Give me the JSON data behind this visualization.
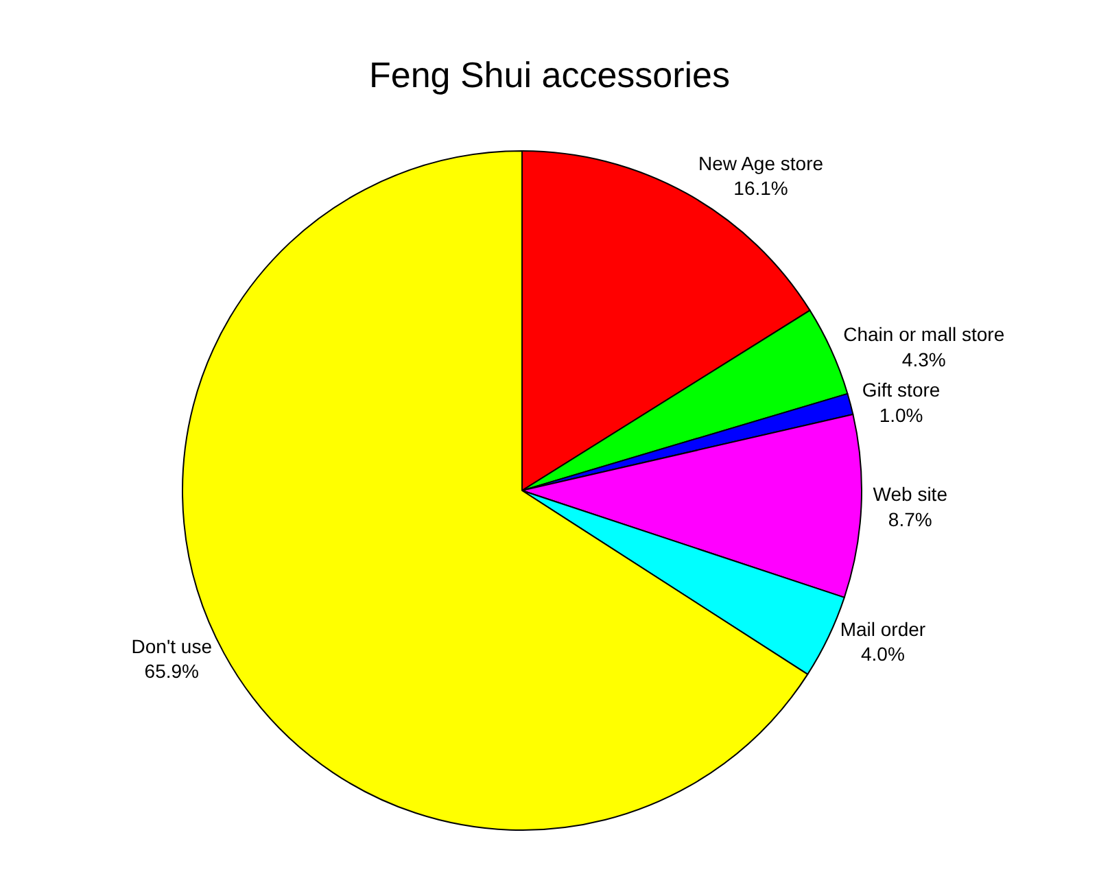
{
  "chart_data": {
    "type": "pie",
    "title": "Feng Shui accessories",
    "categories": [
      "New Age store",
      "Chain or mall store",
      "Gift store",
      "Web site",
      "Mail order",
      "Don't use"
    ],
    "values": [
      16.1,
      4.3,
      1.0,
      8.7,
      4.0,
      65.9
    ],
    "colors": [
      "#ff0000",
      "#00ff00",
      "#0000ff",
      "#ff00ff",
      "#00ffff",
      "#ffff00"
    ],
    "value_labels": [
      "16.1%",
      "4.3%",
      "1.0%",
      "8.7%",
      "4.0%",
      "65.9%"
    ],
    "legend": false
  }
}
